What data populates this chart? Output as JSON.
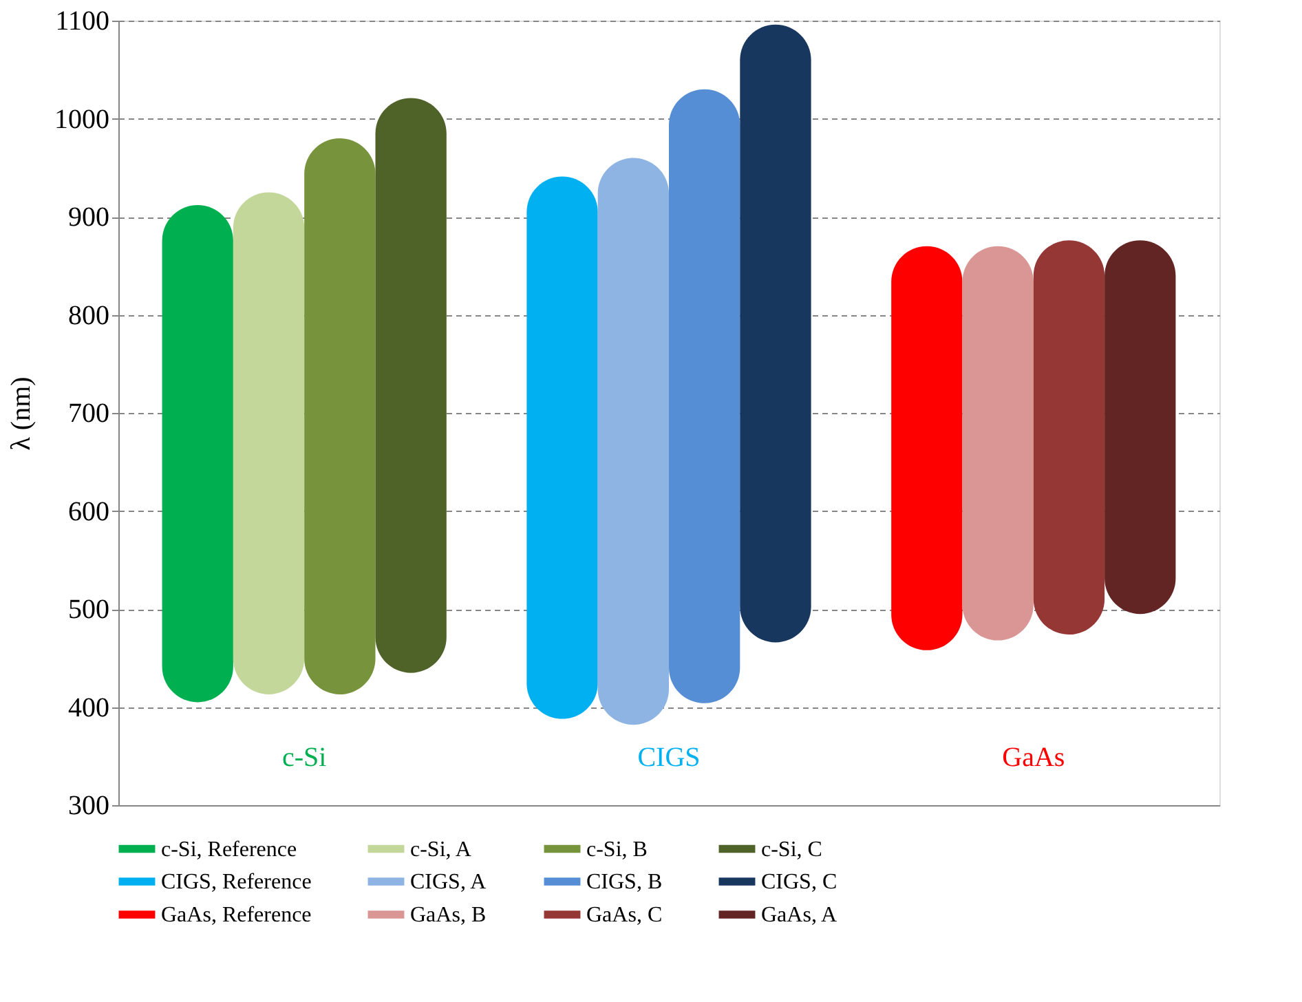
{
  "chart_data": {
    "type": "bar",
    "ylabel": "λ (nm)",
    "categories": [
      "c-Si",
      "CIGS",
      "GaAs"
    ],
    "ylim": [
      300,
      1100
    ],
    "yticks": [
      300,
      400,
      500,
      600,
      700,
      800,
      900,
      1000,
      1100
    ],
    "grid": "y",
    "legend": "bottom",
    "series": [
      {
        "name": "c-Si, Reference",
        "color": "#00b050",
        "values": [
          507,
          null,
          null
        ],
        "base": [
          405,
          null,
          null
        ]
      },
      {
        "name": "c-Si, A",
        "color": "#c4d79b",
        "values": [
          512,
          null,
          null
        ],
        "base": [
          413,
          null,
          null
        ]
      },
      {
        "name": "c-Si, B",
        "color": "#77933c",
        "values": [
          567,
          null,
          null
        ],
        "base": [
          413,
          null,
          null
        ]
      },
      {
        "name": "c-Si, C",
        "color": "#4f6228",
        "values": [
          586,
          null,
          null
        ],
        "base": [
          435,
          null,
          null
        ]
      },
      {
        "name": "CIGS, Reference",
        "color": "#00b0f0",
        "values": [
          null,
          553,
          null
        ],
        "base": [
          null,
          388,
          null
        ]
      },
      {
        "name": "CIGS, A",
        "color": "#8db4e2",
        "values": [
          null,
          578,
          null
        ],
        "base": [
          null,
          382,
          null
        ]
      },
      {
        "name": "CIGS, B",
        "color": "#558ed5",
        "values": [
          null,
          626,
          null
        ],
        "base": [
          null,
          404,
          null
        ]
      },
      {
        "name": "CIGS, C",
        "color": "#17375e",
        "values": [
          null,
          630,
          null
        ],
        "base": [
          null,
          466,
          null
        ]
      },
      {
        "name": "GaAs, Reference",
        "color": "#ff0000",
        "values": [
          null,
          null,
          412
        ],
        "base": [
          null,
          null,
          458
        ]
      },
      {
        "name": "GaAs, B",
        "color": "#da9694",
        "values": [
          null,
          null,
          402
        ],
        "base": [
          null,
          null,
          468
        ]
      },
      {
        "name": "GaAs, C",
        "color": "#953735",
        "values": [
          null,
          null,
          402
        ],
        "base": [
          null,
          null,
          474
        ]
      },
      {
        "name": "GaAs, A",
        "color": "#632523",
        "values": [
          null,
          null,
          381
        ],
        "base": [
          null,
          null,
          495
        ]
      }
    ]
  }
}
